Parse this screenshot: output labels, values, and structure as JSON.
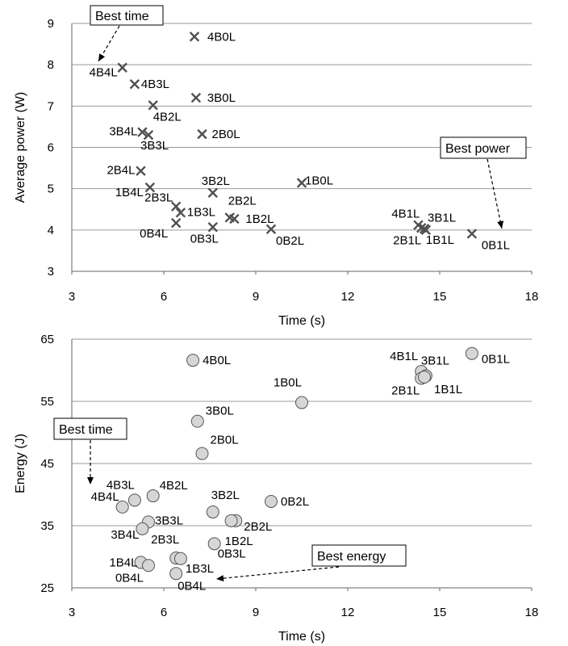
{
  "chart_data": [
    {
      "type": "scatter",
      "xlabel": "Time (s)",
      "ylabel": "Average power (W)",
      "xlim": [
        3,
        18
      ],
      "ylim": [
        3,
        9
      ],
      "xticks": [
        3,
        6,
        9,
        12,
        15,
        18
      ],
      "yticks": [
        3,
        4,
        5,
        6,
        7,
        8,
        9
      ],
      "grid": "horizontal",
      "marker": "x",
      "points": [
        {
          "label": "4B0L",
          "x": 7.0,
          "y": 8.68
        },
        {
          "label": "4B4L",
          "x": 4.65,
          "y": 7.93
        },
        {
          "label": "4B3L",
          "x": 5.05,
          "y": 7.53
        },
        {
          "label": "3B0L",
          "x": 7.05,
          "y": 7.2
        },
        {
          "label": "4B2L",
          "x": 5.65,
          "y": 7.02
        },
        {
          "label": "3B4L",
          "x": 5.3,
          "y": 6.37
        },
        {
          "label": "3B3L",
          "x": 5.5,
          "y": 6.3
        },
        {
          "label": "2B0L",
          "x": 7.25,
          "y": 6.32
        },
        {
          "label": "2B4L",
          "x": 5.25,
          "y": 5.43
        },
        {
          "label": "1B4L",
          "x": 5.55,
          "y": 5.03
        },
        {
          "label": "3B2L",
          "x": 7.6,
          "y": 4.9
        },
        {
          "label": "1B0L",
          "x": 10.5,
          "y": 5.14
        },
        {
          "label": "2B3L",
          "x": 6.4,
          "y": 4.57
        },
        {
          "label": "1B3L",
          "x": 6.55,
          "y": 4.42
        },
        {
          "label": "2B2L",
          "x": 8.15,
          "y": 4.3
        },
        {
          "label": "1B2L",
          "x": 8.3,
          "y": 4.27
        },
        {
          "label": "0B4L",
          "x": 6.4,
          "y": 4.17
        },
        {
          "label": "0B3L",
          "x": 7.6,
          "y": 4.07
        },
        {
          "label": "0B2L",
          "x": 9.5,
          "y": 4.02
        },
        {
          "label": "4B1L",
          "x": 14.3,
          "y": 4.12
        },
        {
          "label": "3B1L",
          "x": 14.5,
          "y": 4.03
        },
        {
          "label": "2B1L",
          "x": 14.4,
          "y": 4.05
        },
        {
          "label": "1B1L",
          "x": 14.55,
          "y": 4.0
        },
        {
          "label": "0B1L",
          "x": 16.05,
          "y": 3.91
        }
      ],
      "annotations": [
        "Best time",
        "Best power"
      ]
    },
    {
      "type": "scatter",
      "xlabel": "Time (s)",
      "ylabel": "Energy (J)",
      "xlim": [
        3,
        18
      ],
      "ylim": [
        25,
        65
      ],
      "xticks": [
        3,
        6,
        9,
        12,
        15,
        18
      ],
      "yticks": [
        25,
        35,
        45,
        55,
        65
      ],
      "grid": "horizontal",
      "marker": "circle",
      "points": [
        {
          "label": "4B0L",
          "x": 6.95,
          "y": 61.6
        },
        {
          "label": "4B1L",
          "x": 14.4,
          "y": 59.8
        },
        {
          "label": "3B1L",
          "x": 14.55,
          "y": 59.1
        },
        {
          "label": "2B1L",
          "x": 14.4,
          "y": 58.7
        },
        {
          "label": "1B1L",
          "x": 14.5,
          "y": 58.9
        },
        {
          "label": "0B1L",
          "x": 16.05,
          "y": 62.7
        },
        {
          "label": "1B0L",
          "x": 10.5,
          "y": 54.8
        },
        {
          "label": "3B0L",
          "x": 7.1,
          "y": 51.8
        },
        {
          "label": "2B0L",
          "x": 7.25,
          "y": 46.6
        },
        {
          "label": "4B2L",
          "x": 5.65,
          "y": 39.8
        },
        {
          "label": "4B3L",
          "x": 5.05,
          "y": 39.1
        },
        {
          "label": "4B4L",
          "x": 4.65,
          "y": 38.0
        },
        {
          "label": "3B2L",
          "x": 7.6,
          "y": 37.2
        },
        {
          "label": "0B2L",
          "x": 9.5,
          "y": 38.9
        },
        {
          "label": "2B2L",
          "x": 8.35,
          "y": 35.8
        },
        {
          "label": "1B2L",
          "x": 8.2,
          "y": 35.8
        },
        {
          "label": "3B3L",
          "x": 5.5,
          "y": 35.6
        },
        {
          "label": "3B4L",
          "x": 5.3,
          "y": 34.5
        },
        {
          "label": "0B3L",
          "x": 7.65,
          "y": 32.1
        },
        {
          "label": "2B3L",
          "x": 6.4,
          "y": 29.8
        },
        {
          "label": "1B3L",
          "x": 6.55,
          "y": 29.7
        },
        {
          "label": "1B4L",
          "x": 5.25,
          "y": 29.1
        },
        {
          "label": "0B4L",
          "x": 5.5,
          "y": 28.6
        },
        {
          "label": "0B4L",
          "x": 6.4,
          "y": 27.3
        }
      ],
      "annotations": [
        "Best time",
        "Best energy"
      ]
    }
  ]
}
